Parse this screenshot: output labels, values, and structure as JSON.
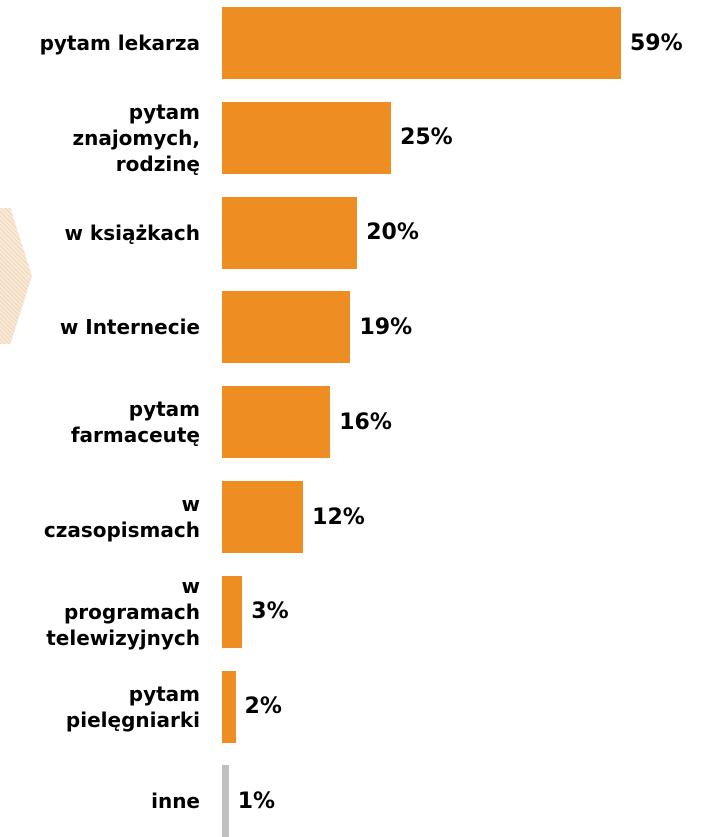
{
  "chart_data": {
    "type": "bar",
    "orientation": "horizontal",
    "categories": [
      "pytam lekarza",
      "pytam\nznajomych,\nrodzinę",
      "w książkach",
      "w Internecie",
      "pytam\nfarmaceutę",
      "w\nczasopismach",
      "w\nprogramach\ntelewizyjnych",
      "pytam\npielęgniarki",
      "inne"
    ],
    "values": [
      59,
      25,
      20,
      19,
      16,
      12,
      3,
      2,
      1
    ],
    "value_labels": [
      "59%",
      "25%",
      "20%",
      "19%",
      "16%",
      "12%",
      "3%",
      "2%",
      "1%"
    ],
    "unit": "%",
    "xlim": [
      0,
      59
    ],
    "grid": false,
    "legend": false
  },
  "colors": {
    "bar": "#ee8e22",
    "bar_other": "#c0c0c0",
    "text": "#000000"
  }
}
